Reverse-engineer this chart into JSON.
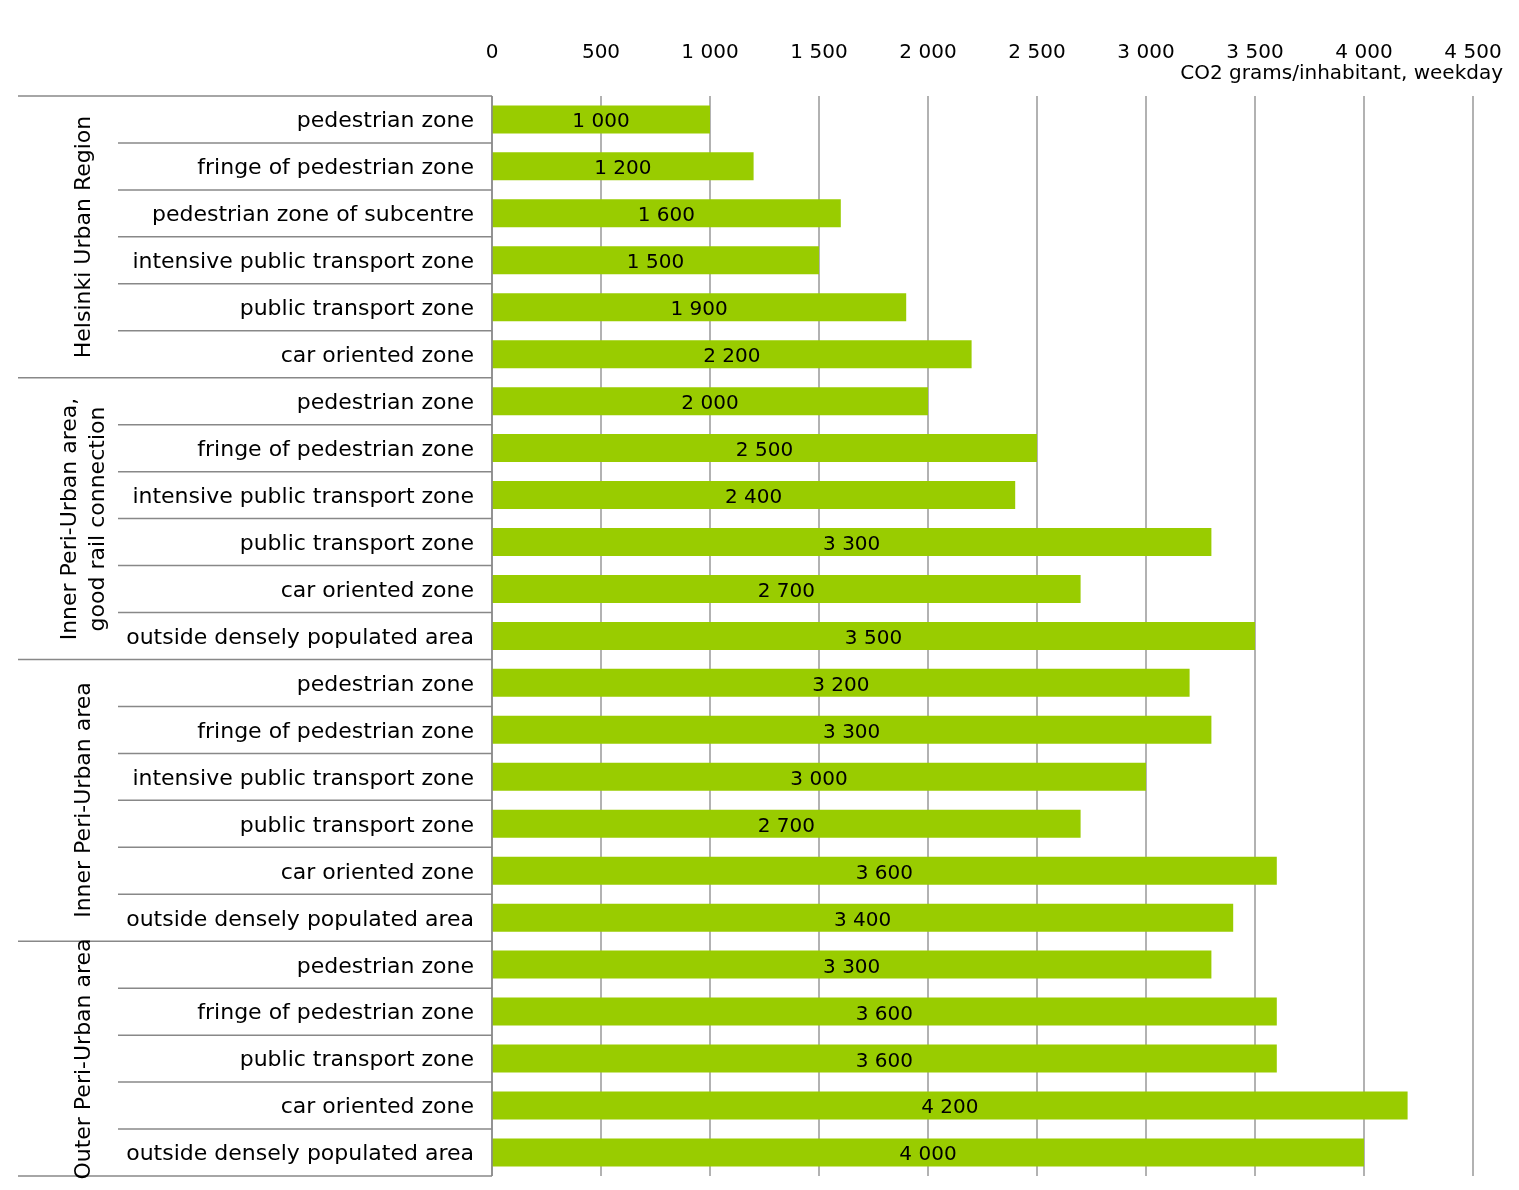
{
  "chart_data": {
    "type": "bar",
    "orientation": "horizontal",
    "xlabel": "CO2 grams/inhabitant, weekday",
    "categories": [
      "pedestrian zone",
      "fringe of pedestrian zone",
      "pedestrian zone of subcentre",
      "intensive public transport zone",
      "public transport zone",
      "car oriented zone",
      "pedestrian zone",
      "fringe of pedestrian zone",
      "intensive public transport zone",
      "public transport zone",
      "car oriented zone",
      "outside densely populated area",
      "pedestrian zone",
      "fringe of pedestrian zone",
      "intensive public transport zone",
      "public transport zone",
      "car oriented zone",
      "outside densely populated area",
      "pedestrian zone",
      "fringe of pedestrian zone",
      "public transport zone",
      "car oriented zone",
      "outside densely populated area"
    ],
    "values": [
      1000,
      1200,
      1600,
      1500,
      1900,
      2200,
      2000,
      2500,
      2400,
      3300,
      2700,
      3500,
      3200,
      3300,
      3000,
      2700,
      3600,
      3400,
      3300,
      3600,
      3600,
      4200,
      4000
    ],
    "value_labels": [
      "1 000",
      "1 200",
      "1 600",
      "1 500",
      "1 900",
      "2 200",
      "2 000",
      "2 500",
      "2 400",
      "3 300",
      "2 700",
      "3 500",
      "3 200",
      "3 300",
      "3 000",
      "2 700",
      "3 600",
      "3 400",
      "3 300",
      "3 600",
      "3 600",
      "4 200",
      "4 000"
    ],
    "color": "#99cc00",
    "xlim": [
      0,
      4500
    ],
    "xticks": [
      0,
      {
        "value": 500,
        "label": "500"
      },
      {
        "value": 1000,
        "label": "1 000"
      },
      {
        "value": 1500,
        "label": "1 500"
      },
      {
        "value": 2000,
        "label": "2 000"
      },
      {
        "value": 2500,
        "label": "2 500"
      },
      {
        "value": 3000,
        "label": "3 000"
      },
      {
        "value": 3500,
        "label": "3 500"
      },
      {
        "value": 4000,
        "label": "4 000"
      },
      {
        "value": 4500,
        "label": "4 500"
      }
    ],
    "grid": "x",
    "annotations": [
      "Helsinki Urban Region",
      "Inner Peri-Urban area, good rail connection",
      "Inner Peri-Urban area",
      "Outer Peri-Urban area"
    ]
  }
}
